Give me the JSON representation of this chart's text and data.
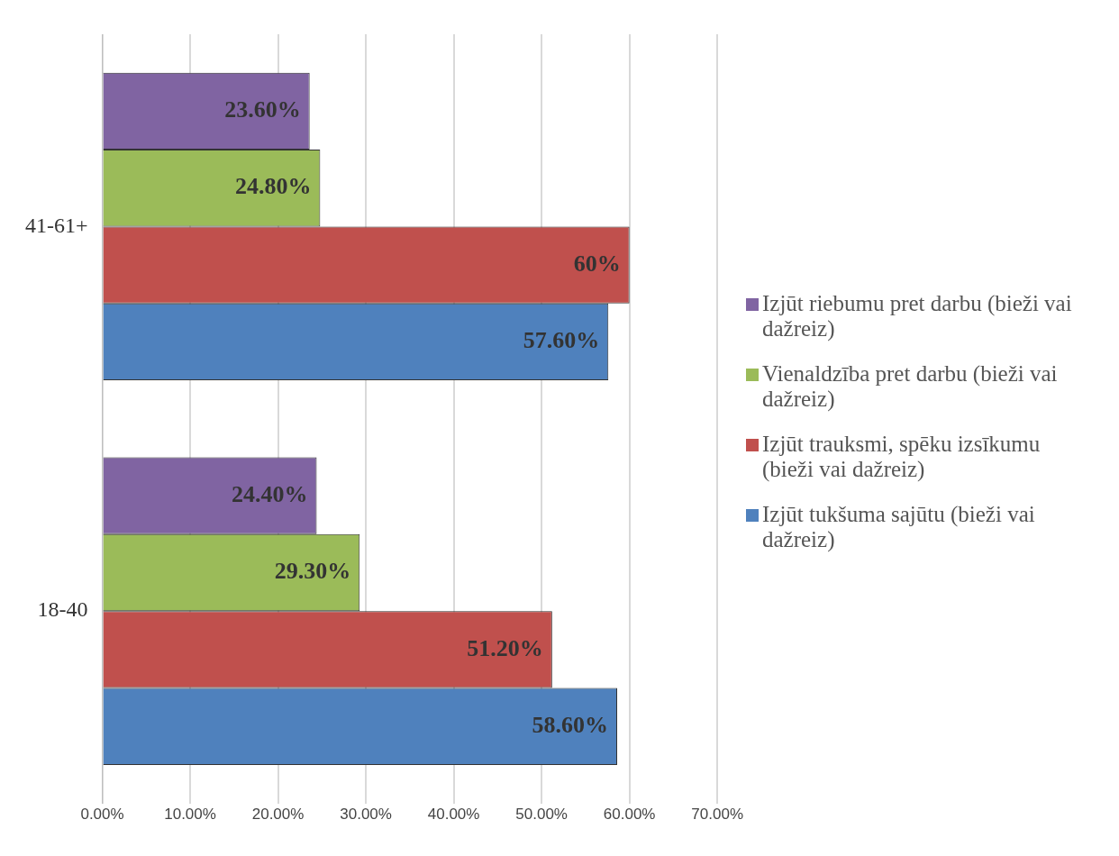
{
  "chart_data": {
    "type": "bar",
    "orientation": "horizontal",
    "categories": [
      "41-61+",
      "18-40"
    ],
    "series": [
      {
        "name": "Izjūt riebumu pret darbu (bieži vai dažreiz)",
        "color": "#8064a2",
        "values": [
          23.6,
          24.4
        ],
        "value_labels": [
          "23.60%",
          "24.40%"
        ]
      },
      {
        "name": "Vienaldzība pret darbu (bieži vai dažreiz)",
        "color": "#9bbb59",
        "values": [
          24.8,
          29.3
        ],
        "value_labels": [
          "24.80%",
          "29.30%"
        ]
      },
      {
        "name": "Izjūt trauksmi, spēku izsīkumu (bieži vai dažreiz)",
        "color": "#c0504d",
        "values": [
          60,
          51.2
        ],
        "value_labels": [
          "60%",
          "51.20%"
        ]
      },
      {
        "name": "Izjūt tukšuma sajūtu (bieži vai dažreiz)",
        "color": "#4f81bd",
        "values": [
          57.6,
          58.6
        ],
        "value_labels": [
          "57.60%",
          "58.60%"
        ]
      }
    ],
    "xlim": [
      0,
      70
    ],
    "xticks": [
      {
        "value": 0,
        "label": "0.00%"
      },
      {
        "value": 10,
        "label": "10.00%"
      },
      {
        "value": 20,
        "label": "20.00%"
      },
      {
        "value": 30,
        "label": "30.00%"
      },
      {
        "value": 40,
        "label": "40.00%"
      },
      {
        "value": 50,
        "label": "50.00%"
      },
      {
        "value": 60,
        "label": "60.00%"
      },
      {
        "value": 70,
        "label": "70.00%"
      }
    ],
    "grid": "x",
    "legend": "right"
  }
}
